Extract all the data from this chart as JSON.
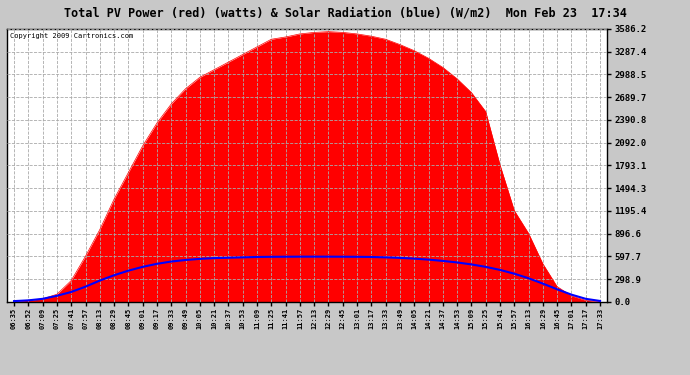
{
  "title": "Total PV Power (red) (watts) & Solar Radiation (blue) (W/m2)  Mon Feb 23  17:34",
  "copyright": "Copyright 2009 Cartronics.com",
  "y_max": 3586.2,
  "y_min": 0.0,
  "y_ticks": [
    0.0,
    298.9,
    597.7,
    896.6,
    1195.4,
    1494.3,
    1793.1,
    2092.0,
    2390.8,
    2689.7,
    2988.5,
    3287.4,
    3586.2
  ],
  "y_tick_labels": [
    "0.0",
    "298.9",
    "597.7",
    "896.6",
    "1195.4",
    "1494.3",
    "1793.1",
    "2092.0",
    "2390.8",
    "2689.7",
    "2988.5",
    "3287.4",
    "3586.2"
  ],
  "x_labels": [
    "06:35",
    "06:52",
    "07:09",
    "07:25",
    "07:41",
    "07:57",
    "08:13",
    "08:29",
    "08:45",
    "09:01",
    "09:17",
    "09:33",
    "09:49",
    "10:05",
    "10:21",
    "10:37",
    "10:53",
    "11:09",
    "11:25",
    "11:41",
    "11:57",
    "12:13",
    "12:29",
    "12:45",
    "13:01",
    "13:17",
    "13:33",
    "13:49",
    "14:05",
    "14:21",
    "14:37",
    "14:53",
    "15:09",
    "15:25",
    "15:41",
    "15:57",
    "16:13",
    "16:29",
    "16:45",
    "17:01",
    "17:17",
    "17:33"
  ],
  "pv_power": [
    10,
    20,
    40,
    100,
    280,
    600,
    950,
    1350,
    1700,
    2050,
    2350,
    2600,
    2800,
    2950,
    3050,
    3150,
    3250,
    3350,
    3450,
    3480,
    3520,
    3540,
    3550,
    3540,
    3520,
    3490,
    3450,
    3380,
    3300,
    3200,
    3080,
    2930,
    2750,
    2500,
    1800,
    1200,
    900,
    500,
    200,
    80,
    20,
    5
  ],
  "solar_rad": [
    10,
    20,
    40,
    80,
    130,
    200,
    280,
    350,
    410,
    460,
    500,
    530,
    550,
    565,
    575,
    580,
    585,
    590,
    592,
    593,
    594,
    594,
    594,
    593,
    592,
    590,
    585,
    578,
    568,
    555,
    538,
    518,
    492,
    460,
    420,
    370,
    310,
    240,
    165,
    95,
    40,
    12
  ],
  "red_color": "#ff0000",
  "blue_color": "#0000ff",
  "plot_bg": "#ffffff",
  "fig_bg": "#c8c8c8",
  "title_bg": "#d8d8d8",
  "grid_color": "#aaaaaa"
}
